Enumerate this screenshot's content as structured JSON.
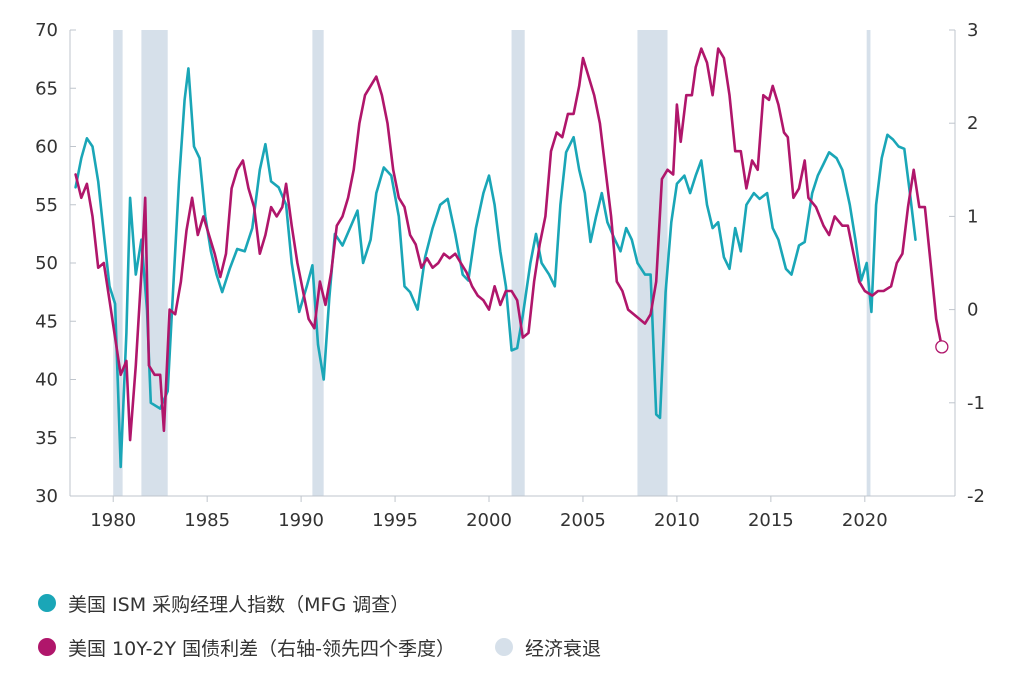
{
  "chart_data": {
    "type": "line",
    "colors": {
      "ism": "#1aa6b7",
      "spread": "#b0166b",
      "recession": "#d6e0ea"
    },
    "x_range": [
      1977.7,
      2024.8
    ],
    "x_ticks": [
      1980,
      1985,
      1990,
      1995,
      2000,
      2005,
      2010,
      2015,
      2020
    ],
    "y_left": {
      "range": [
        30,
        70
      ],
      "ticks": [
        30,
        35,
        40,
        45,
        50,
        55,
        60,
        65,
        70
      ]
    },
    "y_right": {
      "range": [
        -2,
        3
      ],
      "ticks": [
        -2,
        -1,
        0,
        1,
        2,
        3
      ]
    },
    "grid": false,
    "legend_position": "bottom",
    "recessions": [
      [
        1980.0,
        1980.5
      ],
      [
        1981.5,
        1982.9
      ],
      [
        1990.6,
        1991.2
      ],
      [
        2001.2,
        2001.9
      ],
      [
        2007.9,
        2009.5
      ],
      [
        2020.1,
        2020.3
      ]
    ],
    "series": [
      {
        "name": "美国 ISM 采购经理人指数（MFG 调查）",
        "axis": "left",
        "points": [
          [
            1978.0,
            56.5
          ],
          [
            1978.3,
            59.0
          ],
          [
            1978.6,
            60.7
          ],
          [
            1978.9,
            60.0
          ],
          [
            1979.2,
            57.0
          ],
          [
            1979.5,
            52.5
          ],
          [
            1979.8,
            48.0
          ],
          [
            1980.1,
            46.5
          ],
          [
            1980.4,
            32.5
          ],
          [
            1980.7,
            44.0
          ],
          [
            1980.9,
            55.6
          ],
          [
            1981.2,
            49.0
          ],
          [
            1981.5,
            52.0
          ],
          [
            1981.8,
            46.0
          ],
          [
            1982.0,
            38.0
          ],
          [
            1982.5,
            37.5
          ],
          [
            1982.9,
            39.0
          ],
          [
            1983.2,
            48.0
          ],
          [
            1983.5,
            57.0
          ],
          [
            1983.8,
            64.0
          ],
          [
            1984.0,
            66.7
          ],
          [
            1984.3,
            60.0
          ],
          [
            1984.6,
            59.0
          ],
          [
            1984.9,
            54.0
          ],
          [
            1985.2,
            51.0
          ],
          [
            1985.5,
            49.0
          ],
          [
            1985.8,
            47.5
          ],
          [
            1986.2,
            49.5
          ],
          [
            1986.6,
            51.2
          ],
          [
            1987.0,
            51.0
          ],
          [
            1987.4,
            53.0
          ],
          [
            1987.8,
            58.0
          ],
          [
            1988.1,
            60.2
          ],
          [
            1988.4,
            57.0
          ],
          [
            1988.8,
            56.5
          ],
          [
            1989.2,
            55.0
          ],
          [
            1989.5,
            50.0
          ],
          [
            1989.9,
            45.8
          ],
          [
            1990.3,
            48.0
          ],
          [
            1990.6,
            49.8
          ],
          [
            1990.9,
            43.0
          ],
          [
            1991.2,
            40.0
          ],
          [
            1991.5,
            47.0
          ],
          [
            1991.8,
            52.5
          ],
          [
            1992.2,
            51.5
          ],
          [
            1992.6,
            53.0
          ],
          [
            1993.0,
            54.5
          ],
          [
            1993.3,
            50.0
          ],
          [
            1993.7,
            52.0
          ],
          [
            1994.0,
            56.0
          ],
          [
            1994.4,
            58.2
          ],
          [
            1994.8,
            57.5
          ],
          [
            1995.2,
            54.0
          ],
          [
            1995.5,
            48.0
          ],
          [
            1995.8,
            47.5
          ],
          [
            1996.2,
            46.0
          ],
          [
            1996.6,
            50.5
          ],
          [
            1997.0,
            53.0
          ],
          [
            1997.4,
            55.0
          ],
          [
            1997.8,
            55.5
          ],
          [
            1998.2,
            52.5
          ],
          [
            1998.6,
            49.0
          ],
          [
            1998.9,
            48.5
          ],
          [
            1999.3,
            53.0
          ],
          [
            1999.7,
            56.0
          ],
          [
            2000.0,
            57.5
          ],
          [
            2000.3,
            55.0
          ],
          [
            2000.6,
            51.0
          ],
          [
            2000.9,
            48.0
          ],
          [
            2001.2,
            42.5
          ],
          [
            2001.5,
            42.7
          ],
          [
            2001.8,
            45.5
          ],
          [
            2002.2,
            50.0
          ],
          [
            2002.5,
            52.5
          ],
          [
            2002.8,
            50.0
          ],
          [
            2003.2,
            49.0
          ],
          [
            2003.5,
            48.0
          ],
          [
            2003.8,
            55.0
          ],
          [
            2004.1,
            59.5
          ],
          [
            2004.5,
            60.8
          ],
          [
            2004.8,
            58.0
          ],
          [
            2005.1,
            56.0
          ],
          [
            2005.4,
            51.8
          ],
          [
            2005.7,
            54.0
          ],
          [
            2006.0,
            56.0
          ],
          [
            2006.3,
            53.5
          ],
          [
            2006.7,
            52.0
          ],
          [
            2007.0,
            51.0
          ],
          [
            2007.3,
            53.0
          ],
          [
            2007.6,
            52.0
          ],
          [
            2007.9,
            50.0
          ],
          [
            2008.3,
            49.0
          ],
          [
            2008.6,
            49.0
          ],
          [
            2008.9,
            37.0
          ],
          [
            2009.1,
            36.7
          ],
          [
            2009.4,
            47.5
          ],
          [
            2009.7,
            53.5
          ],
          [
            2010.0,
            56.8
          ],
          [
            2010.4,
            57.5
          ],
          [
            2010.7,
            56.0
          ],
          [
            2011.0,
            57.5
          ],
          [
            2011.3,
            58.8
          ],
          [
            2011.6,
            55.0
          ],
          [
            2011.9,
            53.0
          ],
          [
            2012.2,
            53.5
          ],
          [
            2012.5,
            50.5
          ],
          [
            2012.8,
            49.5
          ],
          [
            2013.1,
            53.0
          ],
          [
            2013.4,
            51.0
          ],
          [
            2013.7,
            55.0
          ],
          [
            2014.1,
            56.0
          ],
          [
            2014.4,
            55.5
          ],
          [
            2014.8,
            56.0
          ],
          [
            2015.1,
            53.0
          ],
          [
            2015.4,
            52.0
          ],
          [
            2015.8,
            49.5
          ],
          [
            2016.1,
            49.0
          ],
          [
            2016.5,
            51.5
          ],
          [
            2016.8,
            51.8
          ],
          [
            2017.2,
            56.0
          ],
          [
            2017.5,
            57.5
          ],
          [
            2017.8,
            58.5
          ],
          [
            2018.1,
            59.5
          ],
          [
            2018.5,
            59.0
          ],
          [
            2018.8,
            58.0
          ],
          [
            2019.2,
            55.0
          ],
          [
            2019.5,
            52.0
          ],
          [
            2019.8,
            48.5
          ],
          [
            2020.1,
            50.0
          ],
          [
            2020.35,
            45.8
          ],
          [
            2020.6,
            55.0
          ],
          [
            2020.9,
            59.0
          ],
          [
            2021.2,
            61.0
          ],
          [
            2021.5,
            60.6
          ],
          [
            2021.8,
            60.0
          ],
          [
            2022.1,
            59.8
          ],
          [
            2022.4,
            56.0
          ],
          [
            2022.7,
            52.0
          ]
        ]
      },
      {
        "name": "美国 10Y-2Y 国债利差（右轴-领先四个季度）",
        "axis": "right",
        "points": [
          [
            1978.0,
            1.45
          ],
          [
            1978.3,
            1.2
          ],
          [
            1978.6,
            1.35
          ],
          [
            1978.9,
            1.0
          ],
          [
            1979.2,
            0.45
          ],
          [
            1979.5,
            0.5
          ],
          [
            1979.8,
            0.1
          ],
          [
            1980.1,
            -0.3
          ],
          [
            1980.4,
            -0.7
          ],
          [
            1980.7,
            -0.55
          ],
          [
            1980.9,
            -1.4
          ],
          [
            1981.2,
            -0.6
          ],
          [
            1981.5,
            0.4
          ],
          [
            1981.7,
            1.2
          ],
          [
            1981.9,
            -0.6
          ],
          [
            1982.2,
            -0.7
          ],
          [
            1982.5,
            -0.7
          ],
          [
            1982.7,
            -1.3
          ],
          [
            1983.0,
            0.0
          ],
          [
            1983.3,
            -0.05
          ],
          [
            1983.6,
            0.3
          ],
          [
            1983.9,
            0.85
          ],
          [
            1984.2,
            1.2
          ],
          [
            1984.5,
            0.8
          ],
          [
            1984.8,
            1.0
          ],
          [
            1985.1,
            0.8
          ],
          [
            1985.4,
            0.6
          ],
          [
            1985.7,
            0.35
          ],
          [
            1986.0,
            0.6
          ],
          [
            1986.3,
            1.3
          ],
          [
            1986.6,
            1.5
          ],
          [
            1986.9,
            1.6
          ],
          [
            1987.2,
            1.3
          ],
          [
            1987.5,
            1.1
          ],
          [
            1987.8,
            0.6
          ],
          [
            1988.1,
            0.8
          ],
          [
            1988.4,
            1.1
          ],
          [
            1988.7,
            1.0
          ],
          [
            1989.0,
            1.1
          ],
          [
            1989.2,
            1.35
          ],
          [
            1989.5,
            0.9
          ],
          [
            1989.8,
            0.5
          ],
          [
            1990.1,
            0.2
          ],
          [
            1990.4,
            -0.1
          ],
          [
            1990.7,
            -0.2
          ],
          [
            1991.0,
            0.3
          ],
          [
            1991.3,
            0.05
          ],
          [
            1991.6,
            0.4
          ],
          [
            1991.9,
            0.9
          ],
          [
            1992.2,
            1.0
          ],
          [
            1992.5,
            1.2
          ],
          [
            1992.8,
            1.5
          ],
          [
            1993.1,
            2.0
          ],
          [
            1993.4,
            2.3
          ],
          [
            1993.7,
            2.4
          ],
          [
            1994.0,
            2.5
          ],
          [
            1994.3,
            2.3
          ],
          [
            1994.6,
            2.0
          ],
          [
            1994.9,
            1.5
          ],
          [
            1995.2,
            1.2
          ],
          [
            1995.5,
            1.1
          ],
          [
            1995.8,
            0.8
          ],
          [
            1996.1,
            0.7
          ],
          [
            1996.4,
            0.45
          ],
          [
            1996.7,
            0.55
          ],
          [
            1997.0,
            0.45
          ],
          [
            1997.3,
            0.5
          ],
          [
            1997.6,
            0.6
          ],
          [
            1997.9,
            0.55
          ],
          [
            1998.2,
            0.6
          ],
          [
            1998.5,
            0.5
          ],
          [
            1998.8,
            0.4
          ],
          [
            1999.1,
            0.25
          ],
          [
            1999.4,
            0.15
          ],
          [
            1999.7,
            0.1
          ],
          [
            2000.0,
            0.0
          ],
          [
            2000.3,
            0.25
          ],
          [
            2000.6,
            0.05
          ],
          [
            2000.9,
            0.2
          ],
          [
            2001.2,
            0.2
          ],
          [
            2001.5,
            0.1
          ],
          [
            2001.8,
            -0.3
          ],
          [
            2002.1,
            -0.25
          ],
          [
            2002.4,
            0.3
          ],
          [
            2002.7,
            0.7
          ],
          [
            2003.0,
            1.0
          ],
          [
            2003.3,
            1.7
          ],
          [
            2003.6,
            1.9
          ],
          [
            2003.9,
            1.85
          ],
          [
            2004.2,
            2.1
          ],
          [
            2004.5,
            2.1
          ],
          [
            2004.8,
            2.4
          ],
          [
            2005.0,
            2.7
          ],
          [
            2005.3,
            2.5
          ],
          [
            2005.6,
            2.3
          ],
          [
            2005.9,
            2.0
          ],
          [
            2006.2,
            1.5
          ],
          [
            2006.5,
            1.0
          ],
          [
            2006.8,
            0.3
          ],
          [
            2007.1,
            0.2
          ],
          [
            2007.4,
            0.0
          ],
          [
            2007.7,
            -0.05
          ],
          [
            2008.0,
            -0.1
          ],
          [
            2008.3,
            -0.15
          ],
          [
            2008.6,
            -0.05
          ],
          [
            2008.9,
            0.3
          ],
          [
            2009.2,
            1.4
          ],
          [
            2009.5,
            1.5
          ],
          [
            2009.8,
            1.45
          ],
          [
            2010.0,
            2.2
          ],
          [
            2010.2,
            1.8
          ],
          [
            2010.5,
            2.3
          ],
          [
            2010.8,
            2.3
          ],
          [
            2011.0,
            2.6
          ],
          [
            2011.3,
            2.8
          ],
          [
            2011.6,
            2.65
          ],
          [
            2011.9,
            2.3
          ],
          [
            2012.2,
            2.8
          ],
          [
            2012.5,
            2.7
          ],
          [
            2012.8,
            2.3
          ],
          [
            2013.1,
            1.7
          ],
          [
            2013.4,
            1.7
          ],
          [
            2013.7,
            1.3
          ],
          [
            2014.0,
            1.6
          ],
          [
            2014.3,
            1.5
          ],
          [
            2014.6,
            2.3
          ],
          [
            2014.9,
            2.25
          ],
          [
            2015.1,
            2.4
          ],
          [
            2015.4,
            2.2
          ],
          [
            2015.7,
            1.9
          ],
          [
            2015.9,
            1.85
          ],
          [
            2016.2,
            1.2
          ],
          [
            2016.5,
            1.3
          ],
          [
            2016.8,
            1.6
          ],
          [
            2017.0,
            1.2
          ],
          [
            2017.4,
            1.1
          ],
          [
            2017.8,
            0.9
          ],
          [
            2018.1,
            0.8
          ],
          [
            2018.4,
            1.0
          ],
          [
            2018.8,
            0.9
          ],
          [
            2019.1,
            0.9
          ],
          [
            2019.4,
            0.6
          ],
          [
            2019.7,
            0.3
          ],
          [
            2020.0,
            0.2
          ],
          [
            2020.4,
            0.15
          ],
          [
            2020.7,
            0.2
          ],
          [
            2021.0,
            0.2
          ],
          [
            2021.4,
            0.25
          ],
          [
            2021.7,
            0.5
          ],
          [
            2022.0,
            0.6
          ],
          [
            2022.3,
            1.1
          ],
          [
            2022.6,
            1.5
          ],
          [
            2022.9,
            1.1
          ],
          [
            2023.2,
            1.1
          ],
          [
            2023.5,
            0.5
          ],
          [
            2023.8,
            -0.1
          ],
          [
            2024.1,
            -0.4
          ]
        ]
      }
    ],
    "end_marker": {
      "series": 1,
      "x": 2024.1,
      "y": -0.4
    },
    "legend": {
      "ism": "美国 ISM 采购经理人指数（MFG 调查）",
      "spread": "美国 10Y-2Y 国债利差（右轴-领先四个季度）",
      "recession": "经济衰退"
    }
  }
}
